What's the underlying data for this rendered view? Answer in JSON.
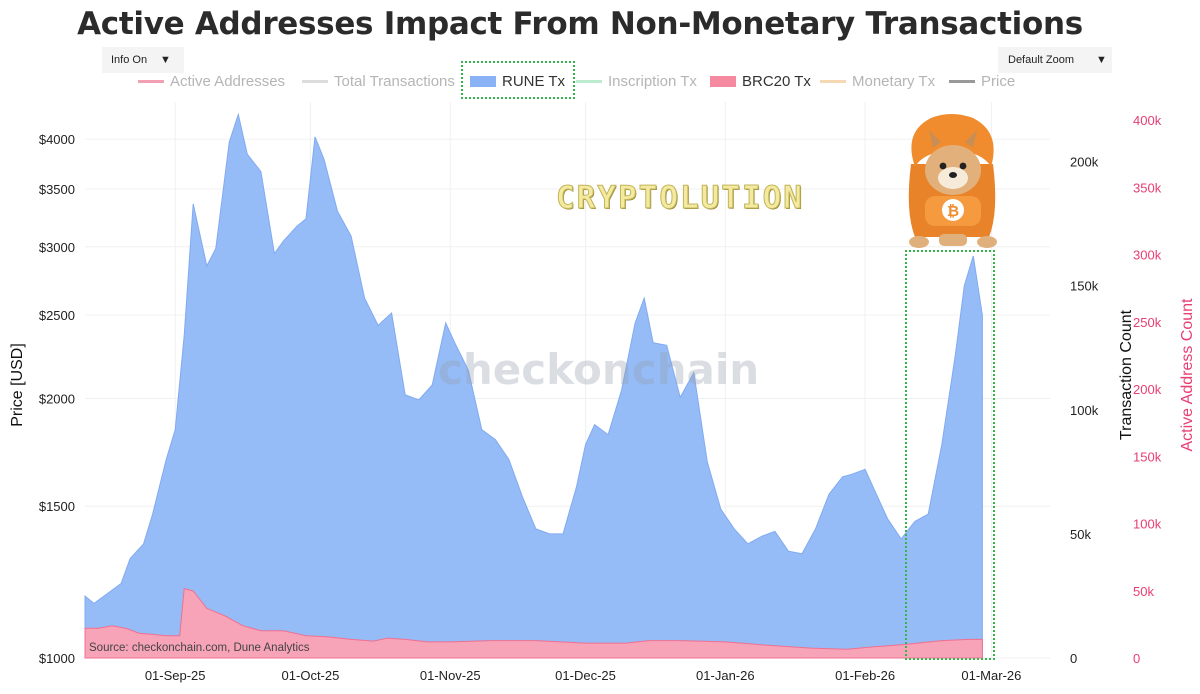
{
  "title": "Active Addresses Impact From Non-Monetary Transactions",
  "controls": {
    "info": "Info On",
    "zoom": "Default Zoom",
    "caret_icon": "chevron-down-icon"
  },
  "legend": [
    {
      "label": "Active Addresses",
      "color": "#f2a0b4",
      "active": false
    },
    {
      "label": "Total Transactions",
      "color": "#dddddd",
      "active": false
    },
    {
      "label": "RUNE Tx",
      "color": "#8ab3f5",
      "active": true
    },
    {
      "label": "Inscription Tx",
      "color": "#bcebd0",
      "active": false
    },
    {
      "label": "BRC20 Tx",
      "color": "#f4899f",
      "active": true
    },
    {
      "label": "Monetary Tx",
      "color": "#f6d9b4",
      "active": false
    },
    {
      "label": "Price",
      "color": "#999999",
      "active": false
    }
  ],
  "watermark": "checkonchain",
  "brand": "CRYPTOLUTION",
  "mascot_icon": "shiba-dog-bitcoin-hoodie-icon",
  "source": "Source: checkonchain.com, Dune Analytics",
  "colors": {
    "rune": "#95bcf7",
    "rune_line": "#82aaf0",
    "brc20": "#f7a3b8",
    "brc20_line": "#f0708f",
    "highlight": "#33b54a",
    "right_axis": "#e83e73"
  },
  "chart_data": {
    "type": "area",
    "xlabels": [
      "01-Sep-25",
      "01-Oct-25",
      "01-Nov-25",
      "01-Dec-25",
      "01-Jan-26",
      "01-Feb-26",
      "01-Mar-26"
    ],
    "axes": {
      "left": {
        "label": "Price [USD]",
        "scale": "log",
        "ticks": [
          "$1000",
          "$1500",
          "$2000",
          "$2500",
          "$3000",
          "$3500",
          "$4000"
        ]
      },
      "right1": {
        "label": "Transaction Count",
        "range": [
          0,
          220000
        ],
        "ticks": [
          "0",
          "50k",
          "100k",
          "150k",
          "200k"
        ]
      },
      "right2": {
        "label": "Active Address Count",
        "range": [
          0,
          400000
        ],
        "ticks": [
          "0",
          "50k",
          "100k",
          "150k",
          "200k",
          "250k",
          "300k",
          "350k",
          "400k"
        ]
      }
    },
    "grid": true,
    "legend_position": "top",
    "highlight_range": [
      "2026-02-15",
      "2026-03-01"
    ],
    "series": [
      {
        "name": "RUNE Tx",
        "axis": "Transaction Count",
        "points": [
          [
            "2025-08-12",
            25000
          ],
          [
            "2025-08-14",
            22000
          ],
          [
            "2025-08-17",
            26000
          ],
          [
            "2025-08-20",
            30000
          ],
          [
            "2025-08-22",
            40000
          ],
          [
            "2025-08-25",
            46000
          ],
          [
            "2025-08-27",
            58000
          ],
          [
            "2025-08-30",
            80000
          ],
          [
            "2025-09-01",
            92000
          ],
          [
            "2025-09-03",
            130000
          ],
          [
            "2025-09-05",
            183000
          ],
          [
            "2025-09-08",
            158000
          ],
          [
            "2025-09-10",
            165000
          ],
          [
            "2025-09-13",
            208000
          ],
          [
            "2025-09-15",
            219000
          ],
          [
            "2025-09-17",
            203000
          ],
          [
            "2025-09-20",
            196000
          ],
          [
            "2025-09-23",
            163000
          ],
          [
            "2025-09-25",
            168000
          ],
          [
            "2025-09-28",
            174000
          ],
          [
            "2025-09-30",
            177000
          ],
          [
            "2025-10-02",
            210000
          ],
          [
            "2025-10-04",
            201000
          ],
          [
            "2025-10-07",
            180000
          ],
          [
            "2025-10-10",
            170000
          ],
          [
            "2025-10-13",
            145000
          ],
          [
            "2025-10-16",
            134000
          ],
          [
            "2025-10-19",
            139000
          ],
          [
            "2025-10-22",
            106000
          ],
          [
            "2025-10-25",
            104000
          ],
          [
            "2025-10-28",
            110000
          ],
          [
            "2025-10-31",
            135000
          ],
          [
            "2025-11-02",
            127000
          ],
          [
            "2025-11-05",
            116000
          ],
          [
            "2025-11-08",
            92000
          ],
          [
            "2025-11-11",
            88000
          ],
          [
            "2025-11-14",
            80000
          ],
          [
            "2025-11-17",
            65000
          ],
          [
            "2025-11-20",
            52000
          ],
          [
            "2025-11-23",
            50000
          ],
          [
            "2025-11-26",
            50000
          ],
          [
            "2025-11-29",
            69000
          ],
          [
            "2025-12-01",
            86000
          ],
          [
            "2025-12-03",
            94000
          ],
          [
            "2025-12-06",
            90000
          ],
          [
            "2025-12-09",
            108000
          ],
          [
            "2025-12-12",
            135000
          ],
          [
            "2025-12-14",
            145000
          ],
          [
            "2025-12-16",
            127000
          ],
          [
            "2025-12-19",
            126000
          ],
          [
            "2025-12-22",
            105000
          ],
          [
            "2025-12-25",
            115000
          ],
          [
            "2025-12-28",
            79000
          ],
          [
            "2025-12-31",
            60000
          ],
          [
            "2026-01-03",
            52000
          ],
          [
            "2026-01-06",
            46000
          ],
          [
            "2026-01-09",
            49000
          ],
          [
            "2026-01-12",
            51000
          ],
          [
            "2026-01-15",
            43000
          ],
          [
            "2026-01-18",
            42000
          ],
          [
            "2026-01-21",
            52000
          ],
          [
            "2026-01-24",
            66000
          ],
          [
            "2026-01-27",
            73000
          ],
          [
            "2026-01-29",
            74000
          ],
          [
            "2026-02-01",
            76000
          ],
          [
            "2026-02-03",
            68000
          ],
          [
            "2026-02-06",
            56000
          ],
          [
            "2026-02-09",
            48000
          ],
          [
            "2026-02-12",
            55000
          ],
          [
            "2026-02-15",
            58000
          ],
          [
            "2026-02-18",
            86000
          ],
          [
            "2026-02-21",
            122000
          ],
          [
            "2026-02-23",
            150000
          ],
          [
            "2026-02-25",
            162000
          ],
          [
            "2026-02-27",
            138000
          ]
        ]
      },
      {
        "name": "BRC20 Tx",
        "axis": "Transaction Count",
        "points": [
          [
            "2025-08-12",
            12000
          ],
          [
            "2025-08-15",
            12000
          ],
          [
            "2025-08-18",
            13000
          ],
          [
            "2025-08-21",
            12000
          ],
          [
            "2025-08-24",
            10000
          ],
          [
            "2025-08-27",
            9500
          ],
          [
            "2025-08-30",
            9000
          ],
          [
            "2025-09-02",
            9000
          ],
          [
            "2025-09-03",
            28000
          ],
          [
            "2025-09-05",
            27000
          ],
          [
            "2025-09-08",
            20000
          ],
          [
            "2025-09-12",
            17000
          ],
          [
            "2025-09-16",
            13000
          ],
          [
            "2025-09-20",
            11000
          ],
          [
            "2025-09-25",
            11000
          ],
          [
            "2025-09-30",
            9000
          ],
          [
            "2025-10-05",
            8500
          ],
          [
            "2025-10-10",
            7500
          ],
          [
            "2025-10-15",
            6800
          ],
          [
            "2025-10-18",
            8000
          ],
          [
            "2025-10-22",
            7500
          ],
          [
            "2025-10-27",
            6500
          ],
          [
            "2025-11-01",
            6500
          ],
          [
            "2025-11-10",
            7000
          ],
          [
            "2025-11-20",
            7000
          ],
          [
            "2025-12-01",
            6000
          ],
          [
            "2025-12-10",
            6000
          ],
          [
            "2025-12-15",
            7000
          ],
          [
            "2025-12-22",
            7000
          ],
          [
            "2026-01-01",
            6500
          ],
          [
            "2026-01-10",
            5200
          ],
          [
            "2026-01-20",
            4000
          ],
          [
            "2026-01-28",
            3500
          ],
          [
            "2026-02-03",
            4500
          ],
          [
            "2026-02-10",
            5500
          ],
          [
            "2026-02-18",
            7000
          ],
          [
            "2026-02-24",
            7500
          ],
          [
            "2026-02-27",
            7500
          ]
        ]
      }
    ]
  }
}
